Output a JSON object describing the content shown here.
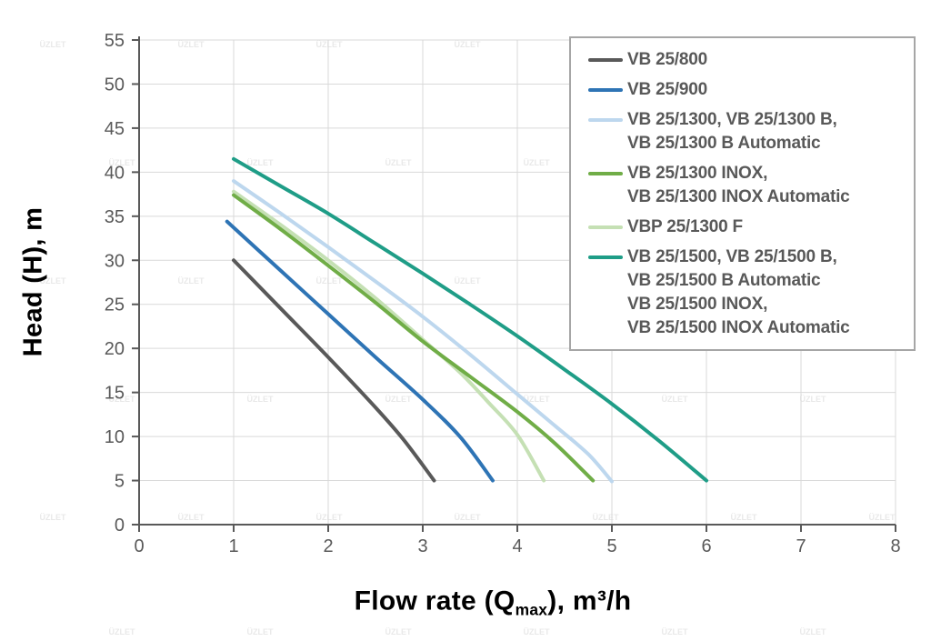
{
  "watermark": {
    "text": "ÜZLET"
  },
  "chart_data": {
    "type": "line",
    "title": "",
    "xlabel": "Flow rate (Q_max), m³/h",
    "xlabel_parts": {
      "prefix": "Flow rate (Q",
      "sub": "max",
      "suffix": "), m³/h"
    },
    "ylabel": "Head (H), m",
    "xlim": [
      0,
      8
    ],
    "ylim": [
      0,
      55
    ],
    "x_ticks": [
      "0",
      "1",
      "2",
      "3",
      "4",
      "5",
      "6",
      "7",
      "8"
    ],
    "y_ticks": [
      "0",
      "5",
      "10",
      "15",
      "20",
      "25",
      "30",
      "35",
      "40",
      "45",
      "50",
      "55"
    ],
    "grid": true,
    "legend_position": "top-right",
    "series": [
      {
        "name": "VB 25/800",
        "legend_lines": [
          "VB 25/800"
        ],
        "color": "#595959",
        "points": [
          [
            1.0,
            30
          ],
          [
            1.5,
            24.5
          ],
          [
            2.0,
            19.0
          ],
          [
            2.5,
            13.3
          ],
          [
            2.8,
            9.6
          ],
          [
            3.12,
            5
          ]
        ]
      },
      {
        "name": "VB 25/900",
        "legend_lines": [
          "VB 25/900"
        ],
        "color": "#2e74b5",
        "points": [
          [
            0.93,
            34.4
          ],
          [
            1.5,
            28.8
          ],
          [
            2.0,
            23.9
          ],
          [
            2.5,
            19.0
          ],
          [
            3.0,
            14.2
          ],
          [
            3.4,
            9.9
          ],
          [
            3.74,
            5
          ]
        ]
      },
      {
        "name": "VB 25/1300, VB 25/1300 B, VB 25/1300 B Automatic",
        "legend_lines": [
          "VB 25/1300, VB 25/1300 B,",
          "VB 25/1300 B Automatic"
        ],
        "color": "#bdd7ee",
        "points": [
          [
            1.0,
            39.0
          ],
          [
            1.5,
            35.3
          ],
          [
            2.0,
            31.5
          ],
          [
            2.5,
            27.6
          ],
          [
            3.0,
            23.6
          ],
          [
            3.5,
            19.3
          ],
          [
            4.0,
            14.8
          ],
          [
            4.4,
            11.2
          ],
          [
            4.75,
            8.0
          ],
          [
            5.0,
            4.9
          ]
        ]
      },
      {
        "name": "VB 25/1300 INOX, VB 25/1300 INOX Automatic",
        "legend_lines": [
          "VB 25/1300 INOX,",
          "VB 25/1300 INOX Automatic"
        ],
        "color": "#70ad47",
        "points": [
          [
            1.0,
            37.4
          ],
          [
            1.5,
            33.5
          ],
          [
            2.0,
            29.4
          ],
          [
            2.5,
            25.2
          ],
          [
            3.0,
            20.8
          ],
          [
            3.5,
            16.8
          ],
          [
            4.0,
            12.8
          ],
          [
            4.4,
            9.2
          ],
          [
            4.8,
            5
          ]
        ]
      },
      {
        "name": "VBP 25/1300 F",
        "legend_lines": [
          "VBP 25/1300 F"
        ],
        "color": "#c5e0b4",
        "points": [
          [
            1.0,
            37.8
          ],
          [
            1.5,
            34.0
          ],
          [
            2.0,
            30.0
          ],
          [
            2.5,
            25.7
          ],
          [
            3.0,
            21.0
          ],
          [
            3.4,
            17.2
          ],
          [
            3.7,
            13.8
          ],
          [
            4.0,
            10.2
          ],
          [
            4.28,
            5
          ]
        ]
      },
      {
        "name": "VB 25/1500, VB 25/1500 B, VB 25/1500 B Automatic, VB 25/1500 INOX, VB 25/1500 INOX Automatic",
        "legend_lines": [
          "VB 25/1500, VB 25/1500 B,",
          "VB 25/1500 B Automatic",
          "VB 25/1500 INOX,",
          "VB 25/1500 INOX Automatic"
        ],
        "color": "#1f9d87",
        "points": [
          [
            1.0,
            41.5
          ],
          [
            1.5,
            38.4
          ],
          [
            2.0,
            35.3
          ],
          [
            2.5,
            31.9
          ],
          [
            3.0,
            28.5
          ],
          [
            3.5,
            25.0
          ],
          [
            4.0,
            21.4
          ],
          [
            4.5,
            17.6
          ],
          [
            5.0,
            13.7
          ],
          [
            5.5,
            9.5
          ],
          [
            6.0,
            5
          ]
        ]
      }
    ]
  },
  "colors": {
    "axis": "#595959",
    "grid": "#d9d9d9",
    "tick_label": "#595959",
    "legend_border": "#a6a6a6",
    "legend_text": "#595959",
    "title_text": "#000000",
    "watermark": "#9a9a9a"
  }
}
